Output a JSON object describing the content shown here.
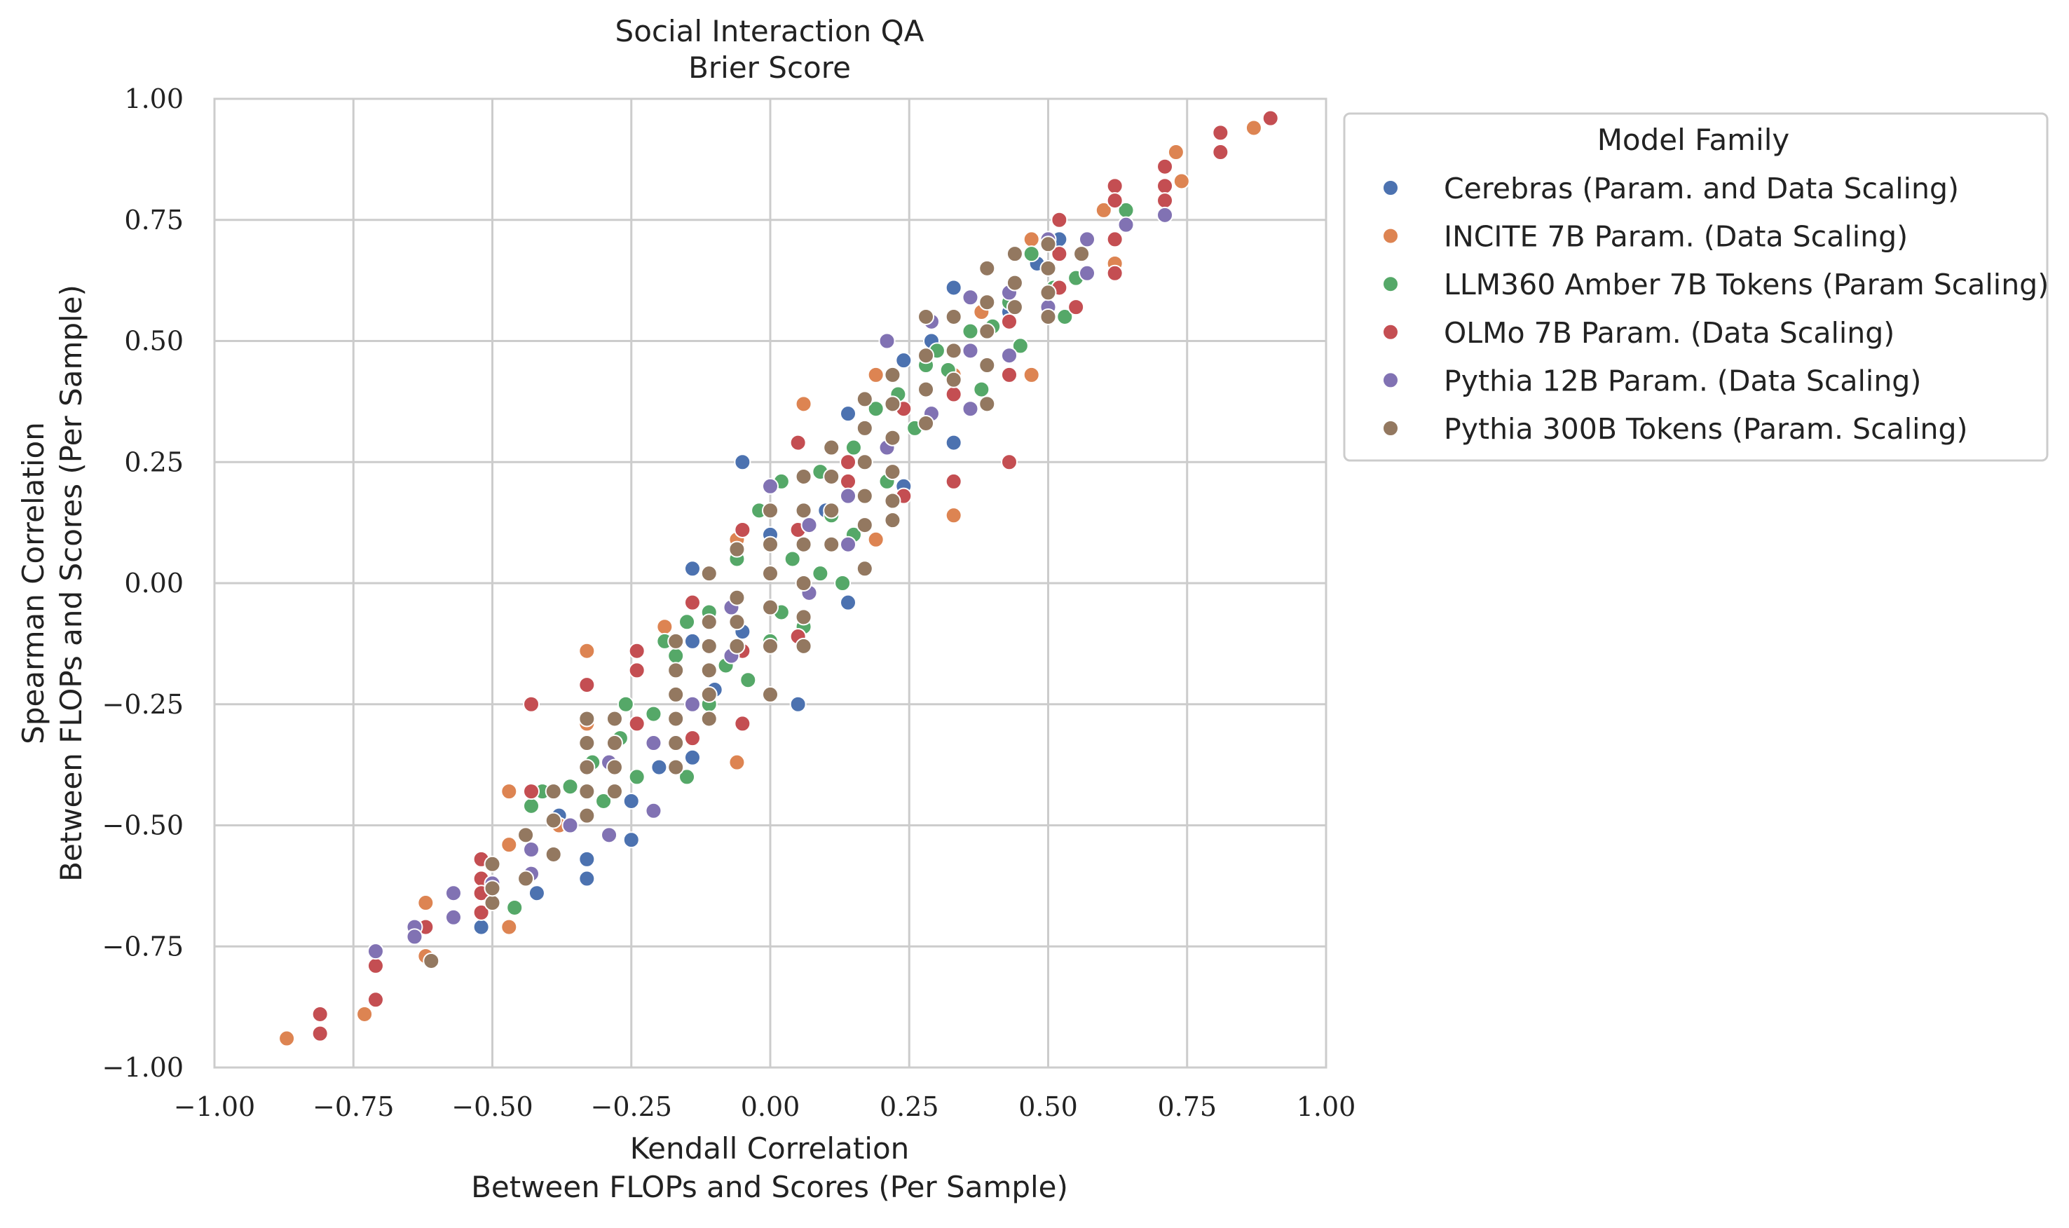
{
  "chart_data": {
    "type": "scatter",
    "title": "Social Interaction QA",
    "subtitle": "Brier Score",
    "xlabel": [
      "Kendall Correlation",
      "Between FLOPs and Scores (Per Sample)"
    ],
    "ylabel": [
      "Spearman Correlation",
      "Between FLOPs and Scores (Per Sample)"
    ],
    "xlim": [
      -1.0,
      1.0
    ],
    "ylim": [
      -1.0,
      1.0
    ],
    "x_ticks": [
      -1.0,
      -0.75,
      -0.5,
      -0.25,
      0.0,
      0.25,
      0.5,
      0.75,
      1.0
    ],
    "y_ticks": [
      -1.0,
      -0.75,
      -0.5,
      -0.25,
      0.0,
      0.25,
      0.5,
      0.75,
      1.0
    ],
    "x_tick_labels": [
      "−1.00",
      "−0.75",
      "−0.50",
      "−0.25",
      "0.00",
      "0.25",
      "0.50",
      "0.75",
      "1.00"
    ],
    "y_tick_labels": [
      "−1.00",
      "−0.75",
      "−0.50",
      "−0.25",
      "0.00",
      "0.25",
      "0.50",
      "0.75",
      "1.00"
    ],
    "grid": true,
    "legend": {
      "title": "Model Family",
      "placement": "outside upper-right"
    },
    "series": [
      {
        "name": "Cerebras (Param. and Data Scaling)",
        "color": "#4c72b0",
        "points": [
          [
            -0.52,
            -0.71
          ],
          [
            -0.43,
            -0.46
          ],
          [
            -0.42,
            -0.64
          ],
          [
            -0.33,
            -0.57
          ],
          [
            -0.33,
            -0.61
          ],
          [
            -0.25,
            -0.45
          ],
          [
            -0.25,
            -0.53
          ],
          [
            -0.2,
            -0.38
          ],
          [
            -0.14,
            -0.12
          ],
          [
            -0.14,
            -0.36
          ],
          [
            -0.14,
            0.03
          ],
          [
            -0.05,
            0.25
          ],
          [
            -0.05,
            -0.1
          ],
          [
            0.05,
            -0.25
          ],
          [
            0.0,
            0.1
          ],
          [
            0.14,
            -0.04
          ],
          [
            0.14,
            0.35
          ],
          [
            0.24,
            0.46
          ],
          [
            0.24,
            0.2
          ],
          [
            0.33,
            0.61
          ],
          [
            0.33,
            0.29
          ],
          [
            0.43,
            0.56
          ],
          [
            0.52,
            0.71
          ],
          [
            0.48,
            0.66
          ],
          [
            -0.38,
            -0.48
          ],
          [
            -0.1,
            -0.22
          ],
          [
            0.1,
            0.15
          ],
          [
            0.29,
            0.5
          ]
        ]
      },
      {
        "name": "INCITE 7B Param. (Data Scaling)",
        "color": "#dd8452",
        "points": [
          [
            -0.87,
            -0.94
          ],
          [
            -0.73,
            -0.89
          ],
          [
            -0.62,
            -0.77
          ],
          [
            -0.62,
            -0.66
          ],
          [
            -0.62,
            -0.71
          ],
          [
            -0.47,
            -0.43
          ],
          [
            -0.47,
            -0.54
          ],
          [
            -0.47,
            -0.71
          ],
          [
            -0.33,
            -0.14
          ],
          [
            -0.33,
            -0.29
          ],
          [
            -0.19,
            -0.09
          ],
          [
            -0.06,
            -0.37
          ],
          [
            -0.06,
            0.09
          ],
          [
            0.06,
            0.37
          ],
          [
            0.06,
            0.0
          ],
          [
            0.19,
            0.09
          ],
          [
            0.19,
            0.43
          ],
          [
            0.33,
            0.14
          ],
          [
            0.33,
            0.43
          ],
          [
            0.47,
            0.43
          ],
          [
            0.47,
            0.71
          ],
          [
            0.6,
            0.77
          ],
          [
            0.73,
            0.89
          ],
          [
            0.74,
            0.83
          ],
          [
            0.87,
            0.94
          ],
          [
            0.62,
            0.66
          ],
          [
            -0.38,
            -0.5
          ],
          [
            0.38,
            0.56
          ]
        ]
      },
      {
        "name": "LLM360 Amber 7B Tokens (Param Scaling)",
        "color": "#55a868",
        "points": [
          [
            -0.46,
            -0.67
          ],
          [
            -0.43,
            -0.55
          ],
          [
            -0.43,
            -0.46
          ],
          [
            -0.41,
            -0.43
          ],
          [
            -0.36,
            -0.42
          ],
          [
            -0.36,
            -0.5
          ],
          [
            -0.32,
            -0.37
          ],
          [
            -0.3,
            -0.45
          ],
          [
            -0.27,
            -0.32
          ],
          [
            -0.26,
            -0.25
          ],
          [
            -0.24,
            -0.4
          ],
          [
            -0.21,
            -0.27
          ],
          [
            -0.17,
            -0.15
          ],
          [
            -0.15,
            -0.4
          ],
          [
            -0.15,
            -0.08
          ],
          [
            -0.11,
            -0.06
          ],
          [
            -0.11,
            -0.25
          ],
          [
            -0.08,
            -0.17
          ],
          [
            -0.06,
            0.05
          ],
          [
            -0.04,
            -0.2
          ],
          [
            -0.02,
            0.15
          ],
          [
            0.02,
            0.21
          ],
          [
            0.02,
            -0.06
          ],
          [
            0.04,
            0.05
          ],
          [
            0.06,
            -0.09
          ],
          [
            0.09,
            0.23
          ],
          [
            0.09,
            0.02
          ],
          [
            0.11,
            0.14
          ],
          [
            0.13,
            0.0
          ],
          [
            0.15,
            0.28
          ],
          [
            0.15,
            0.1
          ],
          [
            0.19,
            0.36
          ],
          [
            0.21,
            0.21
          ],
          [
            0.23,
            0.39
          ],
          [
            0.26,
            0.32
          ],
          [
            0.28,
            0.45
          ],
          [
            0.3,
            0.48
          ],
          [
            0.32,
            0.44
          ],
          [
            0.36,
            0.52
          ],
          [
            0.38,
            0.4
          ],
          [
            0.4,
            0.53
          ],
          [
            0.43,
            0.58
          ],
          [
            0.45,
            0.49
          ],
          [
            0.47,
            0.68
          ],
          [
            0.51,
            0.61
          ],
          [
            0.53,
            0.55
          ],
          [
            0.55,
            0.63
          ],
          [
            0.64,
            0.77
          ],
          [
            0.0,
            -0.12
          ],
          [
            0.0,
            0.08
          ],
          [
            -0.19,
            -0.12
          ]
        ]
      },
      {
        "name": "OLMo 7B Param. (Data Scaling)",
        "color": "#c44e52",
        "points": [
          [
            -0.81,
            -0.93
          ],
          [
            -0.81,
            -0.89
          ],
          [
            -0.71,
            -0.86
          ],
          [
            -0.71,
            -0.79
          ],
          [
            -0.62,
            -0.71
          ],
          [
            -0.52,
            -0.57
          ],
          [
            -0.52,
            -0.61
          ],
          [
            -0.52,
            -0.68
          ],
          [
            -0.52,
            -0.64
          ],
          [
            -0.43,
            -0.25
          ],
          [
            -0.43,
            -0.43
          ],
          [
            -0.33,
            -0.21
          ],
          [
            -0.24,
            -0.14
          ],
          [
            -0.24,
            -0.29
          ],
          [
            -0.24,
            -0.18
          ],
          [
            -0.14,
            -0.04
          ],
          [
            -0.14,
            -0.32
          ],
          [
            -0.05,
            -0.29
          ],
          [
            -0.05,
            -0.14
          ],
          [
            -0.05,
            0.11
          ],
          [
            0.05,
            0.29
          ],
          [
            0.05,
            0.11
          ],
          [
            0.05,
            -0.11
          ],
          [
            0.14,
            0.21
          ],
          [
            0.14,
            0.25
          ],
          [
            0.24,
            0.36
          ],
          [
            0.24,
            0.18
          ],
          [
            0.33,
            0.21
          ],
          [
            0.33,
            0.39
          ],
          [
            0.43,
            0.25
          ],
          [
            0.43,
            0.43
          ],
          [
            0.43,
            0.54
          ],
          [
            0.52,
            0.75
          ],
          [
            0.52,
            0.61
          ],
          [
            0.52,
            0.68
          ],
          [
            0.62,
            0.82
          ],
          [
            0.62,
            0.64
          ],
          [
            0.62,
            0.71
          ],
          [
            0.62,
            0.79
          ],
          [
            0.71,
            0.82
          ],
          [
            0.71,
            0.86
          ],
          [
            0.71,
            0.79
          ],
          [
            0.81,
            0.89
          ],
          [
            0.81,
            0.93
          ],
          [
            0.9,
            0.96
          ],
          [
            0.55,
            0.57
          ]
        ]
      },
      {
        "name": "Pythia 12B Param. (Data Scaling)",
        "color": "#8172b3",
        "points": [
          [
            -0.71,
            -0.76
          ],
          [
            -0.64,
            -0.71
          ],
          [
            -0.64,
            -0.73
          ],
          [
            -0.57,
            -0.64
          ],
          [
            -0.57,
            -0.69
          ],
          [
            -0.5,
            -0.62
          ],
          [
            -0.5,
            -0.66
          ],
          [
            -0.43,
            -0.55
          ],
          [
            -0.43,
            -0.6
          ],
          [
            -0.36,
            -0.5
          ],
          [
            -0.29,
            -0.52
          ],
          [
            -0.29,
            -0.37
          ],
          [
            -0.21,
            -0.47
          ],
          [
            -0.21,
            -0.33
          ],
          [
            -0.14,
            -0.25
          ],
          [
            -0.07,
            -0.15
          ],
          [
            -0.07,
            -0.05
          ],
          [
            0.0,
            0.02
          ],
          [
            0.07,
            0.12
          ],
          [
            0.07,
            -0.02
          ],
          [
            0.14,
            0.18
          ],
          [
            0.14,
            0.08
          ],
          [
            0.21,
            0.5
          ],
          [
            0.21,
            0.28
          ],
          [
            0.29,
            0.35
          ],
          [
            0.29,
            0.54
          ],
          [
            0.36,
            0.36
          ],
          [
            0.36,
            0.48
          ],
          [
            0.43,
            0.47
          ],
          [
            0.43,
            0.6
          ],
          [
            0.5,
            0.71
          ],
          [
            0.5,
            0.57
          ],
          [
            0.57,
            0.71
          ],
          [
            0.57,
            0.64
          ],
          [
            0.64,
            0.74
          ],
          [
            0.71,
            0.76
          ],
          [
            0.36,
            0.59
          ],
          [
            0.0,
            0.2
          ]
        ]
      },
      {
        "name": "Pythia 300B Tokens (Param. Scaling)",
        "color": "#937860",
        "points": [
          [
            -0.61,
            -0.78
          ],
          [
            -0.5,
            -0.66
          ],
          [
            -0.5,
            -0.63
          ],
          [
            -0.5,
            -0.58
          ],
          [
            -0.44,
            -0.61
          ],
          [
            -0.44,
            -0.52
          ],
          [
            -0.39,
            -0.49
          ],
          [
            -0.39,
            -0.43
          ],
          [
            -0.39,
            -0.56
          ],
          [
            -0.33,
            -0.28
          ],
          [
            -0.33,
            -0.33
          ],
          [
            -0.33,
            -0.38
          ],
          [
            -0.33,
            -0.43
          ],
          [
            -0.33,
            -0.48
          ],
          [
            -0.28,
            -0.28
          ],
          [
            -0.28,
            -0.33
          ],
          [
            -0.28,
            -0.38
          ],
          [
            -0.28,
            -0.43
          ],
          [
            -0.17,
            -0.12
          ],
          [
            -0.17,
            -0.18
          ],
          [
            -0.17,
            -0.23
          ],
          [
            -0.17,
            -0.28
          ],
          [
            -0.17,
            -0.33
          ],
          [
            -0.17,
            -0.38
          ],
          [
            -0.11,
            0.02
          ],
          [
            -0.11,
            -0.08
          ],
          [
            -0.11,
            -0.13
          ],
          [
            -0.11,
            -0.18
          ],
          [
            -0.11,
            -0.23
          ],
          [
            -0.11,
            -0.28
          ],
          [
            -0.06,
            -0.03
          ],
          [
            -0.06,
            -0.08
          ],
          [
            -0.06,
            -0.13
          ],
          [
            -0.06,
            0.07
          ],
          [
            0.0,
            0.15
          ],
          [
            0.0,
            0.08
          ],
          [
            0.0,
            0.02
          ],
          [
            0.0,
            -0.05
          ],
          [
            0.0,
            -0.13
          ],
          [
            0.0,
            -0.23
          ],
          [
            0.06,
            0.22
          ],
          [
            0.06,
            0.15
          ],
          [
            0.06,
            0.08
          ],
          [
            0.06,
            0.0
          ],
          [
            0.06,
            -0.07
          ],
          [
            0.06,
            -0.13
          ],
          [
            0.11,
            0.28
          ],
          [
            0.11,
            0.22
          ],
          [
            0.11,
            0.15
          ],
          [
            0.11,
            0.08
          ],
          [
            0.17,
            0.38
          ],
          [
            0.17,
            0.32
          ],
          [
            0.17,
            0.25
          ],
          [
            0.17,
            0.18
          ],
          [
            0.17,
            0.12
          ],
          [
            0.17,
            0.03
          ],
          [
            0.22,
            0.43
          ],
          [
            0.22,
            0.37
          ],
          [
            0.22,
            0.3
          ],
          [
            0.22,
            0.23
          ],
          [
            0.22,
            0.17
          ],
          [
            0.22,
            0.13
          ],
          [
            0.28,
            0.55
          ],
          [
            0.28,
            0.47
          ],
          [
            0.28,
            0.4
          ],
          [
            0.28,
            0.33
          ],
          [
            0.33,
            0.55
          ],
          [
            0.33,
            0.48
          ],
          [
            0.33,
            0.42
          ],
          [
            0.39,
            0.65
          ],
          [
            0.39,
            0.58
          ],
          [
            0.39,
            0.52
          ],
          [
            0.39,
            0.45
          ],
          [
            0.39,
            0.37
          ],
          [
            0.44,
            0.68
          ],
          [
            0.44,
            0.62
          ],
          [
            0.44,
            0.57
          ],
          [
            0.5,
            0.7
          ],
          [
            0.5,
            0.65
          ],
          [
            0.5,
            0.6
          ],
          [
            0.5,
            0.55
          ],
          [
            0.56,
            0.68
          ]
        ]
      }
    ]
  }
}
